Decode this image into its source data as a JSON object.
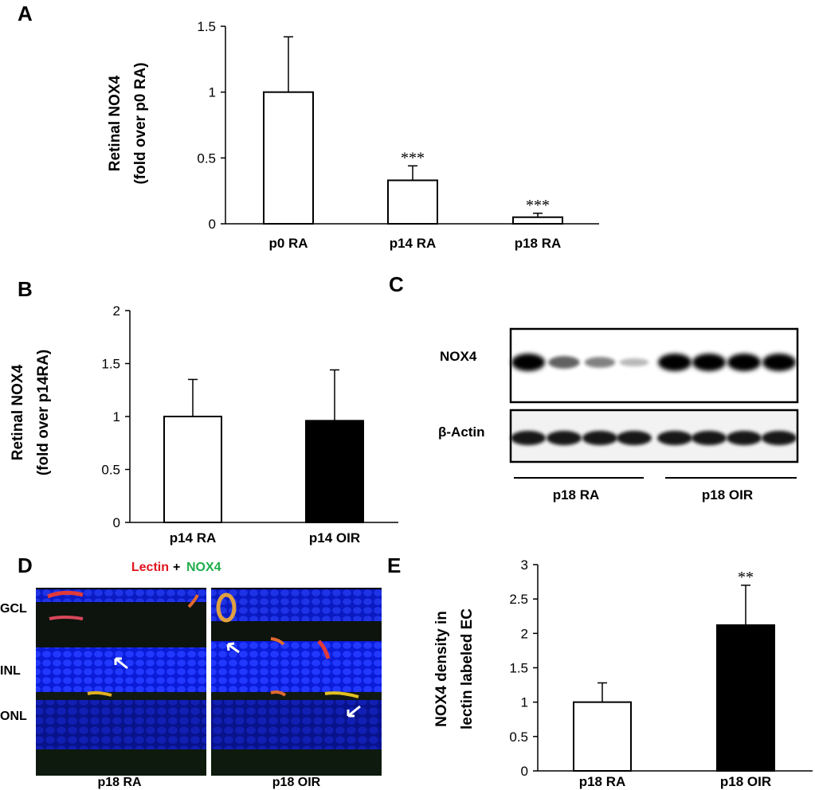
{
  "panel_letters": {
    "A": "A",
    "B": "B",
    "C": "C",
    "D": "D",
    "E": "E"
  },
  "chart_data": [
    {
      "panel": "A",
      "type": "bar",
      "categories": [
        "p0 RA",
        "p14 RA",
        "p18 RA"
      ],
      "values": [
        1.0,
        0.33,
        0.05
      ],
      "errors": [
        0.42,
        0.11,
        0.03
      ],
      "fills": [
        "#ffffff",
        "#ffffff",
        "#ffffff"
      ],
      "annotations": [
        "",
        "***",
        "***"
      ],
      "ylim": [
        0,
        1.5
      ],
      "yticks": [
        0,
        0.5,
        1,
        1.5
      ],
      "ytick_labels": [
        "0",
        "0.5",
        "1",
        "1.5"
      ],
      "ylabel_lines": [
        "Retinal NOX4",
        "(fold over p0 RA)"
      ]
    },
    {
      "panel": "B",
      "type": "bar",
      "categories": [
        "p14 RA",
        "p14 OIR"
      ],
      "values": [
        1.0,
        0.96
      ],
      "errors": [
        0.35,
        0.48
      ],
      "fills": [
        "#ffffff",
        "#000000"
      ],
      "annotations": [
        "",
        ""
      ],
      "ylim": [
        0,
        2
      ],
      "yticks": [
        0,
        0.5,
        1,
        1.5,
        2
      ],
      "ytick_labels": [
        "0",
        "0.5",
        "1",
        "1.5",
        "2"
      ],
      "ylabel_lines": [
        "Retinal NOX4",
        "(fold over p14RA)"
      ]
    },
    {
      "panel": "E",
      "type": "bar",
      "categories": [
        "p18 RA",
        "p18 OIR"
      ],
      "values": [
        1.0,
        2.12
      ],
      "errors": [
        0.28,
        0.58
      ],
      "fills": [
        "#ffffff",
        "#000000"
      ],
      "annotations": [
        "",
        "**"
      ],
      "ylim": [
        0,
        3
      ],
      "yticks": [
        0,
        0.5,
        1,
        1.5,
        2,
        2.5,
        3
      ],
      "ytick_labels": [
        "0",
        "0.5",
        "1",
        "1.5",
        "2",
        "2.5",
        "3"
      ],
      "ylabel_lines": [
        "NOX4 density in",
        "lectin labeled EC"
      ]
    }
  ],
  "blot": {
    "nox4_label": "NOX4",
    "actin_label": "β-Actin",
    "group1_label": "p18 RA",
    "group2_label": "p18 OIR",
    "nox4_band_intensity": [
      1.0,
      0.55,
      0.4,
      0.15,
      1.0,
      1.0,
      1.0,
      1.0
    ],
    "actin_band_intensity": [
      1.0,
      1.0,
      1.0,
      1.0,
      1.0,
      1.0,
      1.0,
      1.0
    ]
  },
  "micrograph": {
    "lectin_label": "Lectin",
    "plus": "+",
    "nox4_label": "NOX4",
    "lectin_color": "#e0161e",
    "nox4_color": "#1fae4b",
    "layers": [
      "GCL",
      "INL",
      "ONL"
    ],
    "left_label": "p18 RA",
    "right_label": "p18 OIR"
  }
}
